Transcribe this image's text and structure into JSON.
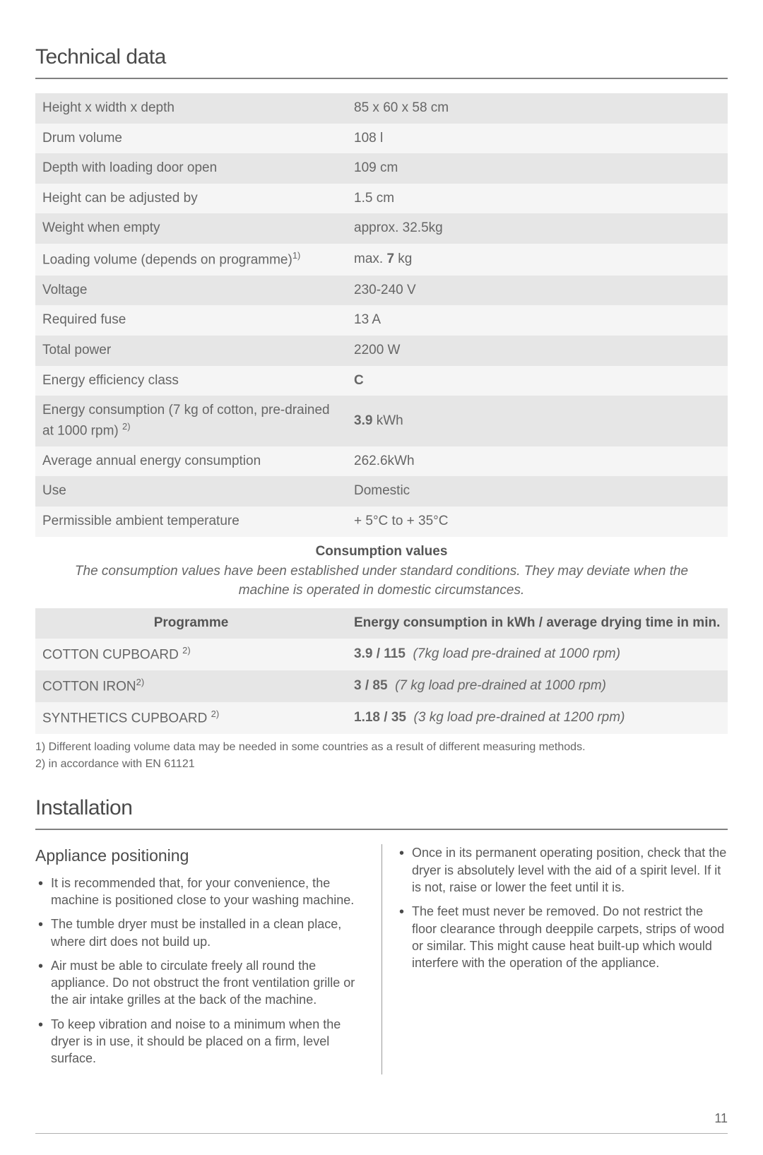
{
  "section1": {
    "title": "Technical data",
    "specs": [
      {
        "label": "Height x width x depth",
        "value": "85 x 60 x 58 cm"
      },
      {
        "label": "Drum volume",
        "value": "108 l"
      },
      {
        "label": "Depth with loading door open",
        "value": "109 cm"
      },
      {
        "label": "Height can be adjusted by",
        "value": "1.5 cm"
      },
      {
        "label": "Weight when empty",
        "value": "approx. 32.5kg"
      },
      {
        "label_html": "Loading volume (depends on programme)<sup>1)</sup>",
        "value_html": "max. <span class=\"bold\">7</span> kg"
      },
      {
        "label": "Voltage",
        "value": "230-240 V"
      },
      {
        "label": "Required fuse",
        "value": "13 A"
      },
      {
        "label": "Total power",
        "value": "2200 W"
      },
      {
        "label": "Energy efficiency class",
        "value_html": "<span class=\"bold\">C</span>"
      },
      {
        "label_html": "Energy consumption (7 kg of cotton, pre-drained at 1000 rpm) <sup>2)</sup>",
        "value_html": "<span class=\"bold\">3.9</span> kWh"
      },
      {
        "label": "Average annual energy consumption",
        "value": "262.6kWh"
      },
      {
        "label": "Use",
        "value": "Domestic"
      },
      {
        "label": "Permissible ambient temperature",
        "value": "+ 5°C to + 35°C"
      }
    ],
    "consumption_heading": "Consumption values",
    "consumption_desc": "The consumption values have been established under standard conditions. They may deviate when the machine is operated in domestic circumstances.",
    "programme_header1": "Programme",
    "programme_header2": "Energy consumption in kWh / average drying time in min.",
    "programmes": [
      {
        "name_html": "COTTON CUPBOARD <sup>2)</sup>",
        "value_html": "<span class=\"bold\">3.9 / 115</span>&nbsp;&nbsp;<span class=\"italic\">(7kg load pre-drained at 1000 rpm)</span>"
      },
      {
        "name_html": "COTTON IRON<sup>2)</sup>",
        "value_html": "<span class=\"bold\">3 / 85</span>&nbsp;&nbsp;<span class=\"italic\">(7 kg load pre-drained at 1000 rpm)</span>"
      },
      {
        "name_html": "SYNTHETICS CUPBOARD <sup>2)</sup>",
        "value_html": "<span class=\"bold\">1.18 / 35</span>&nbsp;&nbsp;<span class=\"italic\">(3 kg load pre-drained at 1200 rpm)</span>"
      }
    ],
    "footnote1": "1) Different loading volume data may be needed in some countries as a result of different measuring methods.",
    "footnote2": "2) in accordance with EN 61121"
  },
  "section2": {
    "title": "Installation",
    "subheading": "Appliance positioning",
    "left_items": [
      "It is recommended that, for your convenience, the machine is positioned close to your washing machine.",
      "The tumble dryer must be installed in a clean place, where dirt does not build up.",
      "Air must be able to circulate freely all round the appliance. Do not obstruct the front ventilation grille or the air intake grilles at the back of the machine.",
      "To keep vibration and noise to a minimum when the dryer is in use, it should be placed on a firm, level surface."
    ],
    "right_items": [
      "Once in its permanent operating position, check that the dryer is absolutely level with the aid of a spirit level. If it is not, raise or lower the feet until it is.",
      "The feet must never be removed. Do not restrict the floor clearance through deeppile carpets, strips of wood or similar. This might cause heat built-up which would interfere with the operation of the appliance."
    ]
  },
  "page_number": "11"
}
